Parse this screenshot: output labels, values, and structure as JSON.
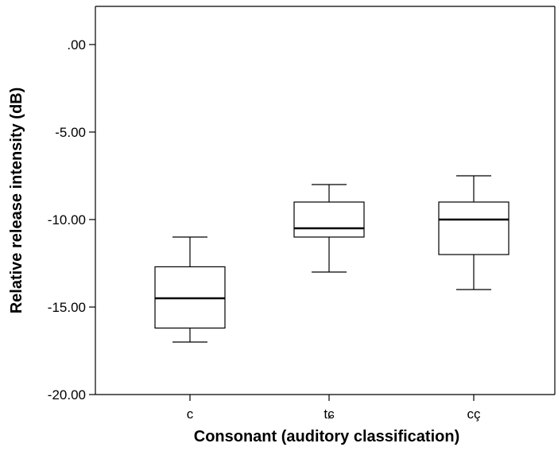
{
  "chart_data": {
    "type": "boxplot",
    "title": "",
    "xlabel": "Consonant (auditory classification)",
    "ylabel": "Relative release intensity (dB)",
    "ylim": [
      -20,
      2
    ],
    "yticks": [
      ".00",
      "-5.00",
      "-10.00",
      "-15.00",
      "-20.00"
    ],
    "ytick_values": [
      0,
      -5,
      -10,
      -15,
      -20
    ],
    "categories": [
      "c",
      "tɕ",
      "cç"
    ],
    "boxes": [
      {
        "category": "c",
        "whisker_low": -17.0,
        "q1": -16.2,
        "median": -14.5,
        "q3": -12.7,
        "whisker_high": -11.0
      },
      {
        "category": "tɕ",
        "whisker_low": -13.0,
        "q1": -11.0,
        "median": -10.5,
        "q3": -9.0,
        "whisker_high": -8.0
      },
      {
        "category": "cç",
        "whisker_low": -14.0,
        "q1": -12.0,
        "median": -10.0,
        "q3": -9.0,
        "whisker_high": -7.5
      }
    ],
    "grid": false,
    "legend": "none"
  }
}
